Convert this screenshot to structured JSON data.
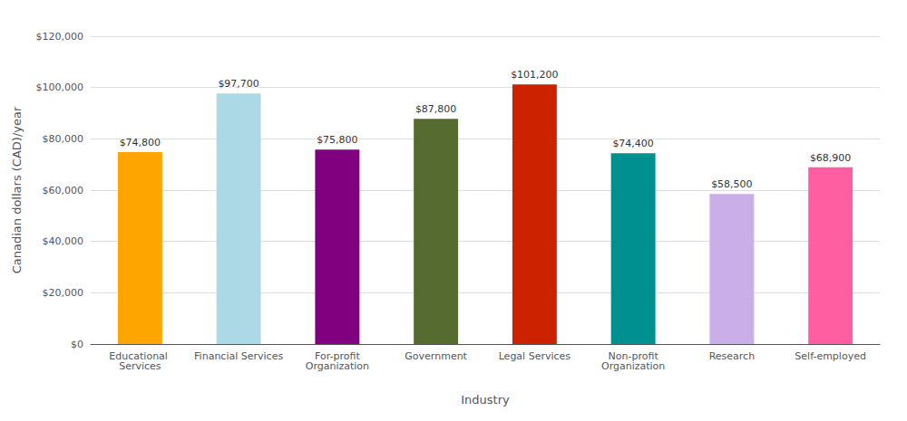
{
  "chart_data": {
    "type": "bar",
    "categories": [
      "Educational Services",
      "Financial Services",
      "For-profit\nOrganization",
      "Government",
      "Legal Services",
      "Non-profit\nOrganization",
      "Research",
      "Self-employed"
    ],
    "values": [
      74800,
      97700,
      75800,
      87800,
      101200,
      74400,
      58500,
      68900
    ],
    "value_labels": [
      "$74,800",
      "$97,700",
      "$75,800",
      "$87,800",
      "$101,200",
      "$74,400",
      "$58,500",
      "$68,900"
    ],
    "colors": [
      "#FFA500",
      "#ADD8E6",
      "#800080",
      "#556B2F",
      "#CC2200",
      "#009090",
      "#C9AEE8",
      "#FF5FA0"
    ],
    "data_labels": true,
    "xlabel": "Industry",
    "ylabel": "Canadian dollars (CAD)/year",
    "ylim": [
      0,
      120000
    ],
    "yticks": [
      {
        "value": 0,
        "label": "$0"
      },
      {
        "value": 20000,
        "label": "$20,000"
      },
      {
        "value": 40000,
        "label": "$40,000"
      },
      {
        "value": 60000,
        "label": "$60,000"
      },
      {
        "value": 80000,
        "label": "$80,000"
      },
      {
        "value": 100000,
        "label": "$100,000"
      },
      {
        "value": 120000,
        "label": "$120,000"
      }
    ],
    "grid": true
  }
}
